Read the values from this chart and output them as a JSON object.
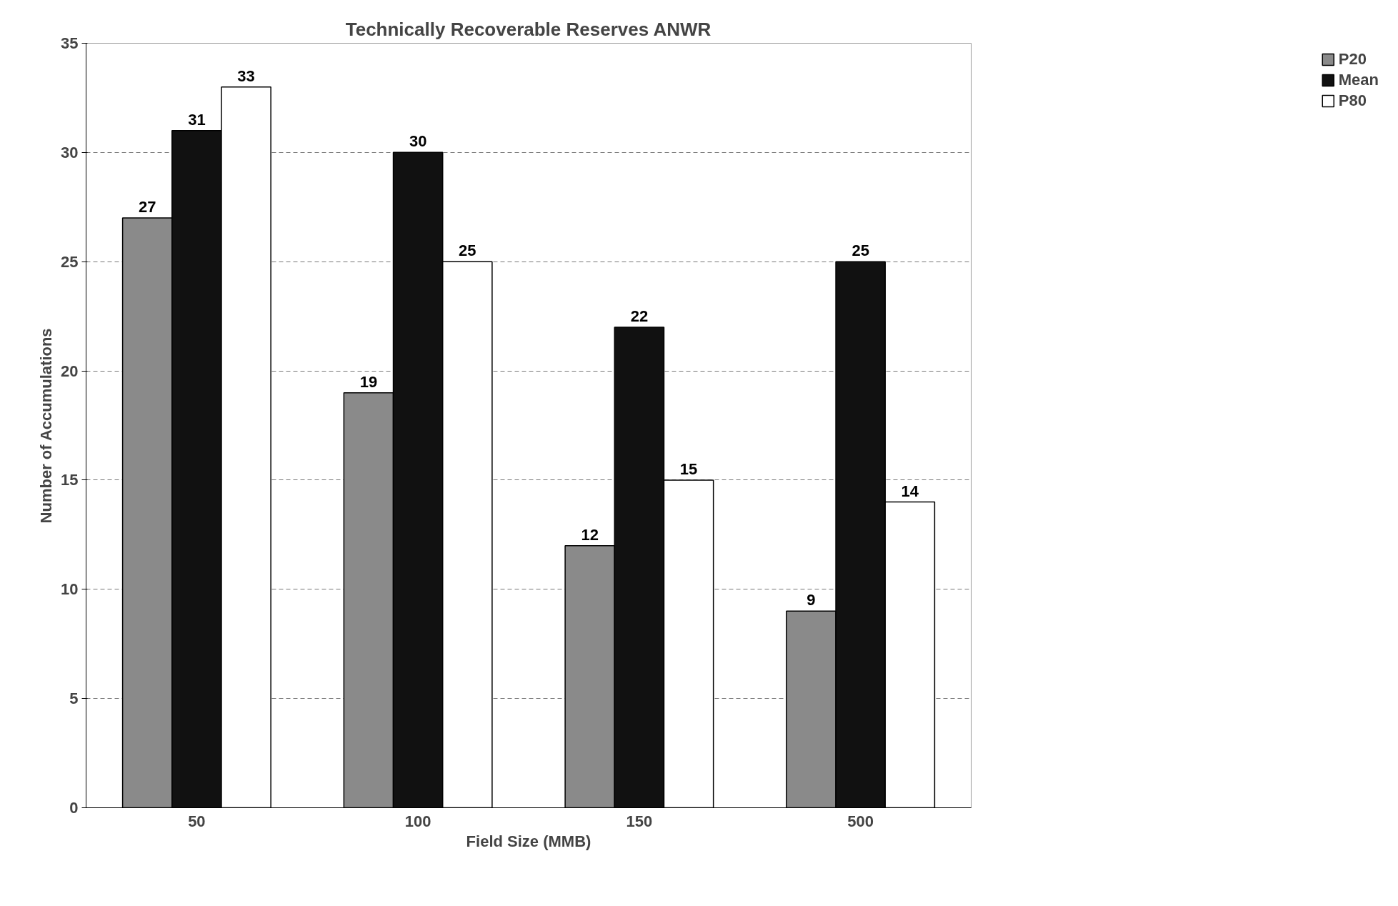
{
  "chart_data": {
    "type": "bar",
    "title": "Technically Recoverable Reserves ANWR",
    "xlabel": "Field Size (MMB)",
    "ylabel": "Number of Accumulations",
    "categories": [
      "50",
      "100",
      "150",
      "500"
    ],
    "series": [
      {
        "name": "P20",
        "color": "#8a8a8a",
        "values": [
          27,
          19,
          12,
          9
        ]
      },
      {
        "name": "Mean",
        "color": "#111111",
        "values": [
          31,
          30,
          22,
          25
        ]
      },
      {
        "name": "P80",
        "color": "#ffffff",
        "values": [
          33,
          25,
          15,
          14
        ]
      }
    ],
    "ylim": [
      0,
      35
    ],
    "yticks": [
      0,
      5,
      10,
      15,
      20,
      25,
      30,
      35
    ],
    "grid": "y",
    "legend": "right",
    "data_labels": true
  }
}
